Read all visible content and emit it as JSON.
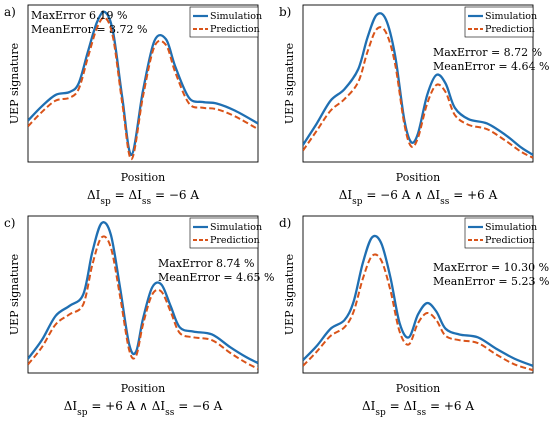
{
  "colors": {
    "simulation": "#1f6fb2",
    "prediction": "#d95319"
  },
  "legend": {
    "simulation": "Simulation",
    "prediction": "Prediction"
  },
  "chart_data": [
    {
      "type": "line",
      "panel_label": "a)",
      "xlabel": "Position",
      "ylabel": "UEP signature",
      "caption": "ΔI_sp = ΔI_ss = −6 A",
      "stats": {
        "max_error": "MaxError   6.19 %",
        "mean_error": "MeanError = 3.72 %"
      },
      "grid": false,
      "legend_position": "top-right",
      "series": [
        {
          "name": "Simulation",
          "style": "solid",
          "x": [
            0,
            0.06,
            0.12,
            0.18,
            0.22,
            0.26,
            0.3,
            0.335,
            0.37,
            0.41,
            0.45,
            0.5,
            0.55,
            0.6,
            0.64,
            0.7,
            0.76,
            0.82,
            0.9,
            1.0
          ],
          "y": [
            0.24,
            0.34,
            0.42,
            0.44,
            0.5,
            0.72,
            0.93,
            1.0,
            0.86,
            0.4,
            0.0,
            0.45,
            0.8,
            0.81,
            0.62,
            0.4,
            0.37,
            0.36,
            0.31,
            0.22
          ]
        },
        {
          "name": "Prediction",
          "style": "dashed",
          "x": [
            0,
            0.06,
            0.12,
            0.18,
            0.22,
            0.26,
            0.3,
            0.335,
            0.37,
            0.41,
            0.45,
            0.5,
            0.55,
            0.6,
            0.64,
            0.7,
            0.76,
            0.82,
            0.9,
            1.0
          ],
          "y": [
            0.2,
            0.3,
            0.38,
            0.4,
            0.46,
            0.68,
            0.89,
            0.96,
            0.82,
            0.36,
            -0.03,
            0.41,
            0.76,
            0.77,
            0.58,
            0.36,
            0.33,
            0.32,
            0.27,
            0.18
          ]
        }
      ]
    },
    {
      "type": "line",
      "panel_label": "b)",
      "xlabel": "Position",
      "ylabel": "UEP signature",
      "caption": "ΔI_sp = −6 A ∧ ΔI_ss = +6 A",
      "stats": {
        "max_error": "MaxError = 8.72 %",
        "mean_error": "MeanError = 4.64 %"
      },
      "grid": false,
      "legend_position": "top-right",
      "series": [
        {
          "name": "Simulation",
          "style": "solid",
          "x": [
            0,
            0.06,
            0.12,
            0.18,
            0.24,
            0.28,
            0.32,
            0.36,
            0.4,
            0.44,
            0.47,
            0.5,
            0.54,
            0.58,
            0.62,
            0.66,
            0.72,
            0.8,
            0.88,
            0.95,
            1.0
          ],
          "y": [
            0.07,
            0.22,
            0.38,
            0.46,
            0.6,
            0.82,
            0.98,
            0.95,
            0.7,
            0.25,
            0.09,
            0.15,
            0.42,
            0.56,
            0.5,
            0.33,
            0.25,
            0.22,
            0.14,
            0.05,
            0.0
          ]
        },
        {
          "name": "Prediction",
          "style": "dashed",
          "x": [
            0,
            0.06,
            0.12,
            0.18,
            0.24,
            0.28,
            0.32,
            0.36,
            0.4,
            0.44,
            0.47,
            0.5,
            0.54,
            0.58,
            0.62,
            0.66,
            0.72,
            0.8,
            0.88,
            0.95,
            1.0
          ],
          "y": [
            0.03,
            0.17,
            0.31,
            0.39,
            0.51,
            0.72,
            0.88,
            0.86,
            0.64,
            0.22,
            0.06,
            0.12,
            0.36,
            0.49,
            0.44,
            0.28,
            0.21,
            0.18,
            0.1,
            0.02,
            -0.02
          ]
        }
      ]
    },
    {
      "type": "line",
      "panel_label": "c)",
      "xlabel": "Position",
      "ylabel": "UEP signature",
      "caption": "ΔI_sp = +6 A ∧ ΔI_ss = −6 A",
      "stats": {
        "max_error": "MaxError   8.74 %",
        "mean_error": "MeanError = 4.65 %"
      },
      "grid": false,
      "legend_position": "top-right",
      "series": [
        {
          "name": "Simulation",
          "style": "solid",
          "x": [
            0,
            0.06,
            0.12,
            0.18,
            0.24,
            0.28,
            0.32,
            0.36,
            0.4,
            0.44,
            0.47,
            0.5,
            0.54,
            0.58,
            0.62,
            0.66,
            0.72,
            0.8,
            0.88,
            0.95,
            1.0
          ],
          "y": [
            0.05,
            0.18,
            0.35,
            0.42,
            0.5,
            0.8,
            1.0,
            0.92,
            0.55,
            0.15,
            0.1,
            0.33,
            0.55,
            0.57,
            0.42,
            0.27,
            0.24,
            0.22,
            0.13,
            0.06,
            0.02
          ]
        },
        {
          "name": "Prediction",
          "style": "dashed",
          "x": [
            0,
            0.06,
            0.12,
            0.18,
            0.24,
            0.28,
            0.32,
            0.36,
            0.4,
            0.44,
            0.47,
            0.5,
            0.54,
            0.58,
            0.62,
            0.66,
            0.72,
            0.8,
            0.88,
            0.95,
            1.0
          ],
          "y": [
            0.01,
            0.13,
            0.29,
            0.36,
            0.43,
            0.71,
            0.9,
            0.83,
            0.49,
            0.11,
            0.07,
            0.29,
            0.5,
            0.52,
            0.38,
            0.23,
            0.2,
            0.18,
            0.09,
            0.02,
            -0.02
          ]
        }
      ]
    },
    {
      "type": "line",
      "panel_label": "d)",
      "xlabel": "Position",
      "ylabel": "UEP signature",
      "caption": "ΔI_sp = ΔI_ss = +6 A",
      "stats": {
        "max_error": "MaxError = 10.30 %",
        "mean_error": "MeanError = 5.23 %"
      },
      "grid": false,
      "legend_position": "top-right",
      "series": [
        {
          "name": "Simulation",
          "style": "solid",
          "x": [
            0,
            0.06,
            0.12,
            0.18,
            0.22,
            0.26,
            0.3,
            0.34,
            0.38,
            0.42,
            0.46,
            0.5,
            0.54,
            0.58,
            0.62,
            0.68,
            0.76,
            0.84,
            0.92,
            1.0
          ],
          "y": [
            0.04,
            0.14,
            0.26,
            0.32,
            0.45,
            0.72,
            0.9,
            0.86,
            0.62,
            0.3,
            0.2,
            0.36,
            0.44,
            0.38,
            0.26,
            0.22,
            0.2,
            0.12,
            0.05,
            0.0
          ]
        },
        {
          "name": "Prediction",
          "style": "dashed",
          "x": [
            0,
            0.06,
            0.12,
            0.18,
            0.22,
            0.26,
            0.3,
            0.34,
            0.38,
            0.42,
            0.46,
            0.5,
            0.54,
            0.58,
            0.62,
            0.68,
            0.76,
            0.84,
            0.92,
            1.0
          ],
          "y": [
            0.0,
            0.1,
            0.21,
            0.27,
            0.38,
            0.61,
            0.77,
            0.74,
            0.53,
            0.24,
            0.15,
            0.3,
            0.37,
            0.32,
            0.21,
            0.18,
            0.16,
            0.08,
            0.01,
            -0.03
          ]
        }
      ]
    }
  ]
}
